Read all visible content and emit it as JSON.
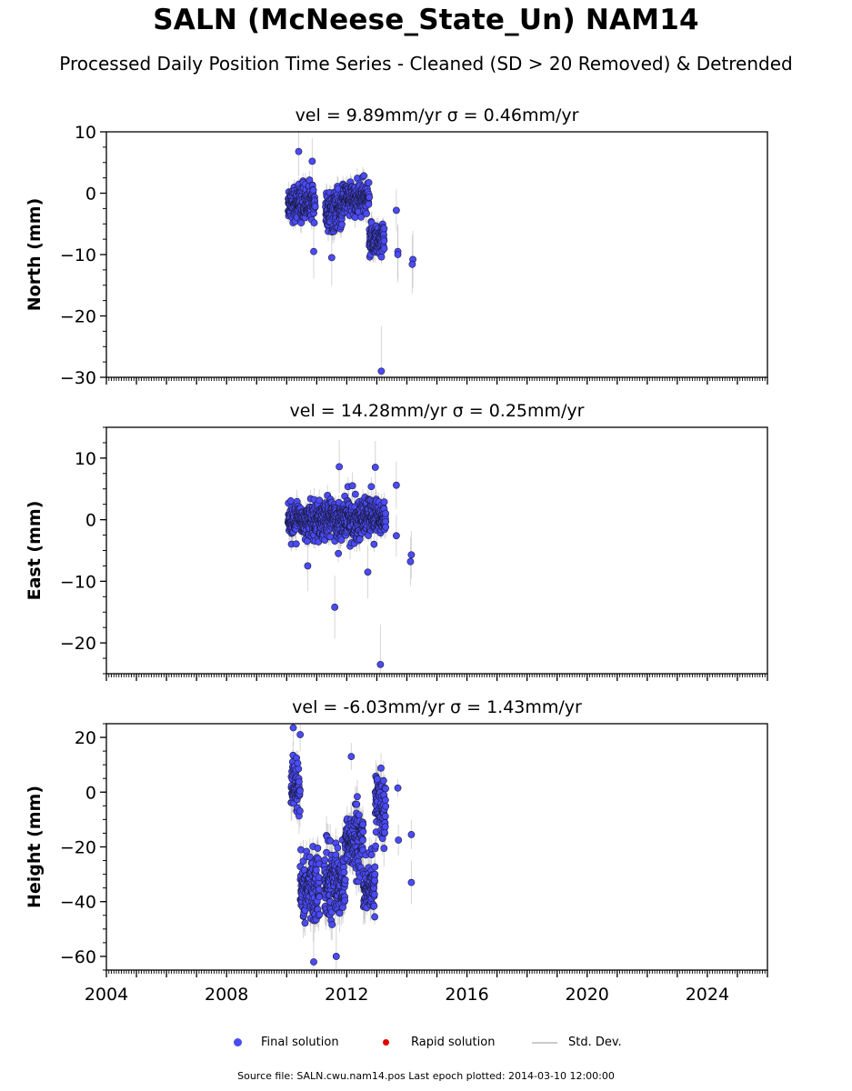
{
  "title": "SALN (McNeese_State_Un) NAM14",
  "subtitle": "Processed Daily Position Time Series - Cleaned (SD > 20 Removed) & Detrended",
  "footer": "Source file: SALN.cwu.nam14.pos  Last epoch plotted: 2014-03-10 12:00:00",
  "legend": {
    "final_label": "Final solution",
    "rapid_label": "Rapid solution",
    "stddev_label": "Std. Dev."
  },
  "colors": {
    "final": "#4b4bf5",
    "final_edge": "#1a1a40",
    "rapid": "#e00000",
    "stddev": "#bbbbbb"
  },
  "chart_data": [
    {
      "type": "scatter",
      "panel": "north",
      "title": "vel = 9.89mm/yr   σ = 0.46mm/yr",
      "ylabel": "North (mm)",
      "xlim": [
        2004,
        2026
      ],
      "ylim": [
        -30,
        10
      ],
      "yticks": [
        10,
        0,
        -10,
        -20,
        -30
      ],
      "ytick_labels": [
        "10",
        "0",
        "−10",
        "−20",
        "−30"
      ],
      "clusters": [
        {
          "x": [
            2010.05,
            2010.95
          ],
          "y": [
            -7,
            4
          ],
          "center": -1.5,
          "spread": 2.5
        },
        {
          "x": [
            2011.3,
            2011.85
          ],
          "y": [
            -9,
            3
          ],
          "center": -3,
          "spread": 2.8
        },
        {
          "x": [
            2011.85,
            2012.75
          ],
          "y": [
            -7,
            5
          ],
          "center": -1,
          "spread": 2.5
        },
        {
          "x": [
            2012.75,
            2013.25
          ],
          "y": [
            -13,
            -2
          ],
          "center": -7.5,
          "spread": 2.5
        }
      ],
      "points": [
        {
          "x": 2010.4,
          "y": 6.8
        },
        {
          "x": 2010.85,
          "y": 5.2
        },
        {
          "x": 2011.5,
          "y": -10.5
        },
        {
          "x": 2013.15,
          "y": -29
        },
        {
          "x": 2013.65,
          "y": -2.8
        },
        {
          "x": 2013.7,
          "y": -9.5
        },
        {
          "x": 2013.7,
          "y": -10
        },
        {
          "x": 2014.2,
          "y": -10.8
        },
        {
          "x": 2014.18,
          "y": -11.6
        },
        {
          "x": 2010.9,
          "y": -9.5
        }
      ]
    },
    {
      "type": "scatter",
      "panel": "east",
      "title": "vel = 14.28mm/yr   σ = 0.25mm/yr",
      "ylabel": "East (mm)",
      "xlim": [
        2004,
        2026
      ],
      "ylim": [
        -25,
        15
      ],
      "yticks": [
        10,
        0,
        -10,
        -20
      ],
      "ytick_labels": [
        "10",
        "0",
        "−10",
        "−20"
      ],
      "clusters": [
        {
          "x": [
            2010.05,
            2011.35
          ],
          "y": [
            -6,
            6
          ],
          "center": 0,
          "spread": 2.6
        },
        {
          "x": [
            2011.35,
            2012.4
          ],
          "y": [
            -7,
            7
          ],
          "center": 0,
          "spread": 3.0
        },
        {
          "x": [
            2012.4,
            2013.3
          ],
          "y": [
            -6,
            7
          ],
          "center": 0.5,
          "spread": 2.6
        }
      ],
      "points": [
        {
          "x": 2011.6,
          "y": -14.2
        },
        {
          "x": 2013.12,
          "y": -23.5
        },
        {
          "x": 2013.65,
          "y": 5.6
        },
        {
          "x": 2013.65,
          "y": -2.6
        },
        {
          "x": 2014.15,
          "y": -5.7
        },
        {
          "x": 2014.12,
          "y": -6.8
        },
        {
          "x": 2012.95,
          "y": 8.5
        },
        {
          "x": 2011.75,
          "y": 8.6
        },
        {
          "x": 2012.7,
          "y": -8.5
        },
        {
          "x": 2010.7,
          "y": -7.5
        }
      ]
    },
    {
      "type": "scatter",
      "panel": "height",
      "title": "vel = -6.03mm/yr   σ = 1.43mm/yr",
      "ylabel": "Height (mm)",
      "xlim": [
        2004,
        2026
      ],
      "ylim": [
        -65,
        25
      ],
      "yticks": [
        20,
        0,
        -20,
        -40,
        -60
      ],
      "ytick_labels": [
        "20",
        "0",
        "−20",
        "−40",
        "−60"
      ],
      "xticks": [
        2004,
        2008,
        2012,
        2016,
        2020,
        2024
      ],
      "xtick_labels": [
        "2004",
        "2008",
        "2012",
        "2016",
        "2020",
        "2024"
      ],
      "clusters": [
        {
          "x": [
            2010.15,
            2010.45
          ],
          "y": [
            -20,
            20
          ],
          "center": 0,
          "spread": 9
        },
        {
          "x": [
            2010.45,
            2011.1
          ],
          "y": [
            -62,
            -12
          ],
          "center": -35,
          "spread": 11
        },
        {
          "x": [
            2011.25,
            2011.95
          ],
          "y": [
            -60,
            -10
          ],
          "center": -33,
          "spread": 11
        },
        {
          "x": [
            2011.95,
            2012.55
          ],
          "y": [
            -40,
            5
          ],
          "center": -18,
          "spread": 10
        },
        {
          "x": [
            2012.55,
            2012.95
          ],
          "y": [
            -55,
            -15
          ],
          "center": -35,
          "spread": 9
        },
        {
          "x": [
            2012.95,
            2013.3
          ],
          "y": [
            -30,
            18
          ],
          "center": -5,
          "spread": 10
        }
      ],
      "points": [
        {
          "x": 2010.22,
          "y": 23.5
        },
        {
          "x": 2010.45,
          "y": 21
        },
        {
          "x": 2010.9,
          "y": -62
        },
        {
          "x": 2013.7,
          "y": 1.5
        },
        {
          "x": 2013.72,
          "y": -17.5
        },
        {
          "x": 2014.15,
          "y": -15.5
        },
        {
          "x": 2014.15,
          "y": -33
        },
        {
          "x": 2012.15,
          "y": 13
        },
        {
          "x": 2011.65,
          "y": -60
        }
      ]
    }
  ]
}
